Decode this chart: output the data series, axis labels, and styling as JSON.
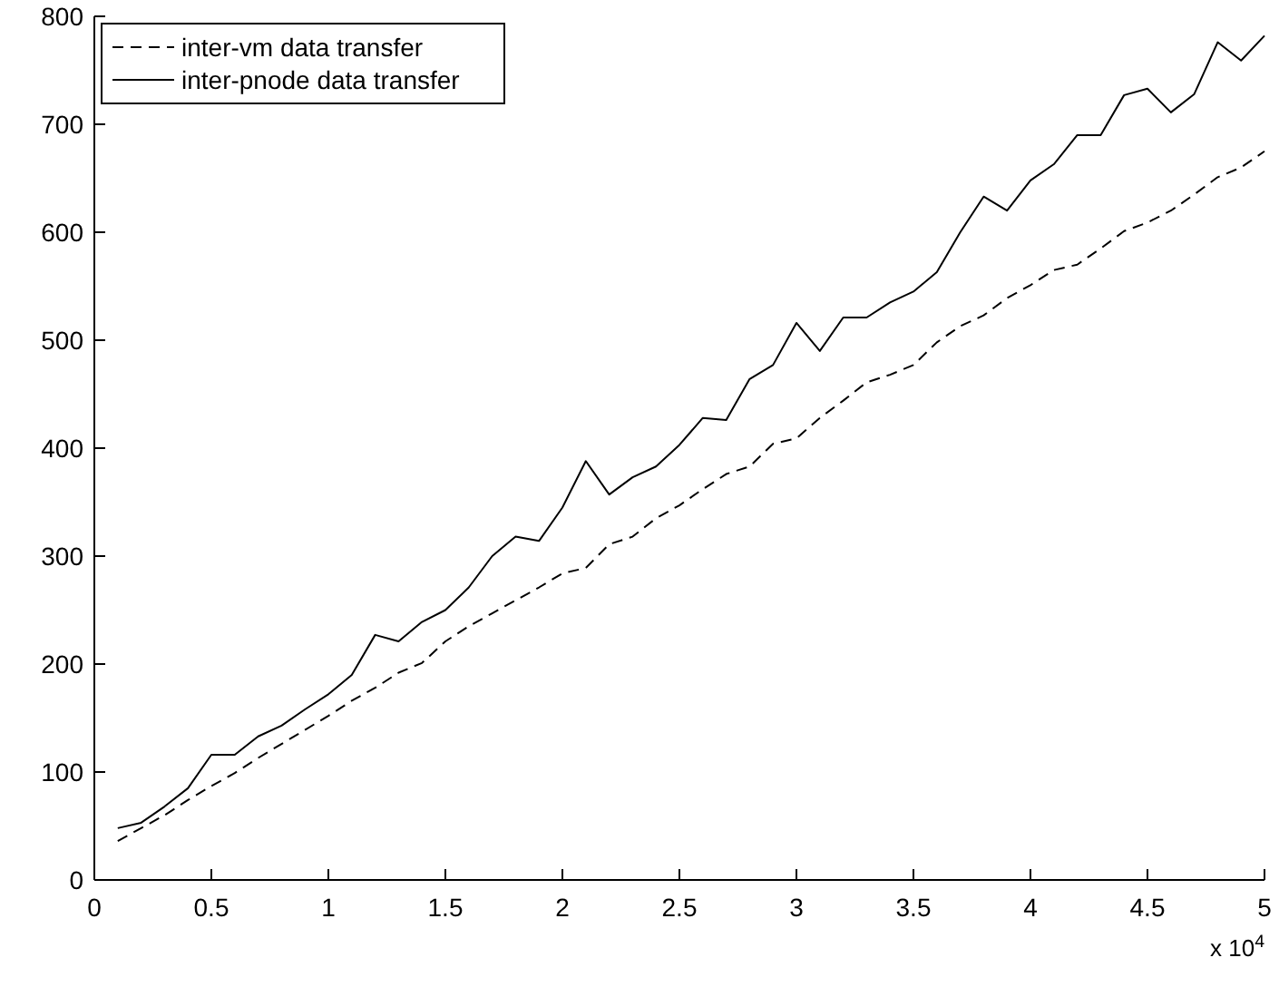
{
  "chart_data": {
    "type": "line",
    "x": [
      0.1,
      0.2,
      0.3,
      0.4,
      0.5,
      0.6,
      0.7,
      0.8,
      0.9,
      1.0,
      1.1,
      1.2,
      1.3,
      1.4,
      1.5,
      1.6,
      1.7,
      1.8,
      1.9,
      2.0,
      2.1,
      2.2,
      2.3,
      2.4,
      2.5,
      2.6,
      2.7,
      2.8,
      2.9,
      3.0,
      3.1,
      3.2,
      3.3,
      3.4,
      3.5,
      3.6,
      3.7,
      3.8,
      3.9,
      4.0,
      4.1,
      4.2,
      4.3,
      4.4,
      4.5,
      4.6,
      4.7,
      4.8,
      4.9,
      5.0
    ],
    "series": [
      {
        "name": "inter-vm data transfer",
        "color": "#000000",
        "line_style": "dashed",
        "values": [
          36,
          48,
          60,
          74,
          87,
          99,
          113,
          126,
          139,
          152,
          166,
          178,
          192,
          201,
          221,
          235,
          247,
          259,
          271,
          284,
          289,
          311,
          318,
          335,
          347,
          362,
          376,
          383,
          404,
          409,
          428,
          444,
          461,
          468,
          477,
          498,
          513,
          523,
          539,
          551,
          565,
          570,
          585,
          601,
          609,
          620,
          635,
          651,
          660,
          675
        ]
      },
      {
        "name": "inter-pnode data transfer",
        "color": "#000000",
        "line_style": "solid",
        "values": [
          48,
          53,
          68,
          85,
          116,
          116,
          133,
          143,
          158,
          172,
          190,
          227,
          221,
          239,
          250,
          271,
          300,
          318,
          314,
          345,
          388,
          357,
          373,
          383,
          403,
          428,
          426,
          464,
          477,
          516,
          490,
          521,
          521,
          535,
          545,
          563,
          600,
          633,
          620,
          648,
          663,
          690,
          690,
          727,
          733,
          711,
          728,
          776,
          759,
          782
        ]
      }
    ],
    "xlim": [
      0,
      5
    ],
    "xticks": [
      0,
      0.5,
      1,
      1.5,
      2,
      2.5,
      3,
      3.5,
      4,
      4.5,
      5
    ],
    "ylim": [
      0,
      800
    ],
    "yticks": [
      0,
      100,
      200,
      300,
      400,
      500,
      600,
      700,
      800
    ],
    "annotations": [
      "x 10$^{4}$"
    ],
    "legend": "top left",
    "grid": false,
    "marker": "none"
  }
}
